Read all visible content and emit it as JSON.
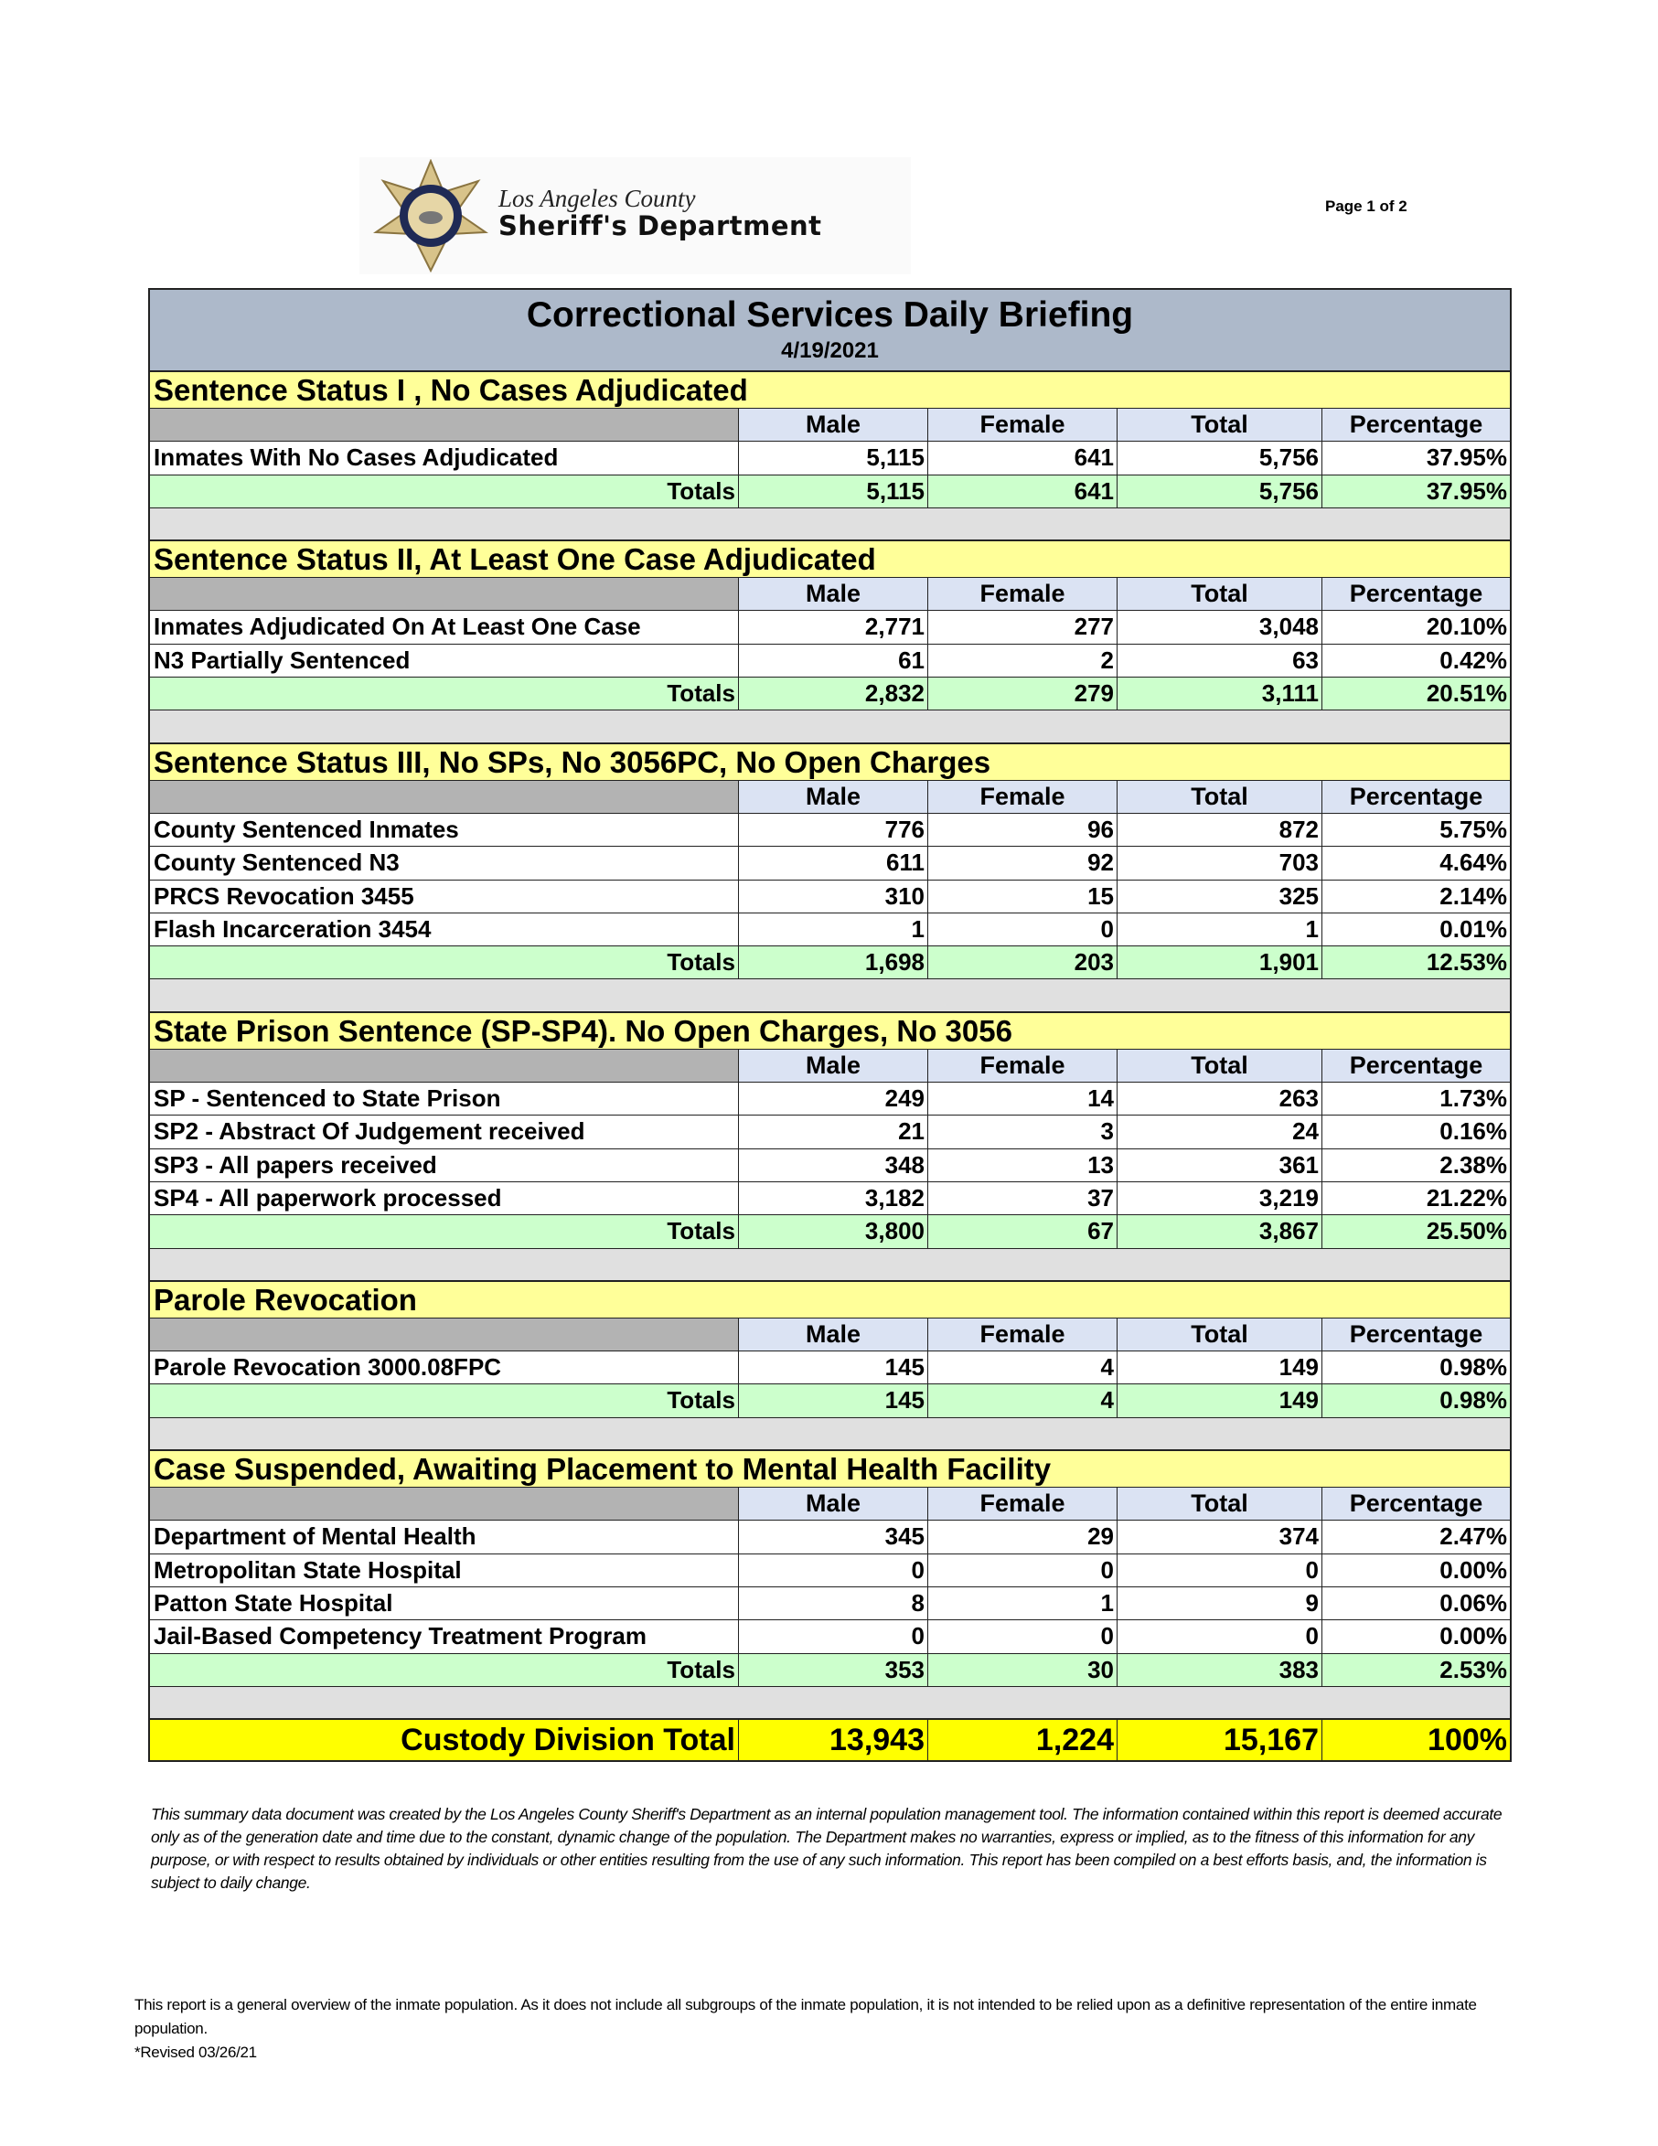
{
  "header": {
    "logo_line1": "Los Angeles County",
    "logo_line2": "Sheriff's Department",
    "page": "Page 1 of 2"
  },
  "report": {
    "title": "Correctional Services Daily Briefing",
    "date": "4/19/2021"
  },
  "columns": [
    "Male",
    "Female",
    "Total",
    "Percentage"
  ],
  "totals_label": "Totals",
  "colors": {
    "title_bg": "#adb9ca",
    "section_bg": "#ffff99",
    "totals_bg": "#ccffcc",
    "grand_bg": "#ffff00"
  },
  "sections": [
    {
      "title": "Sentence Status I , No Cases Adjudicated",
      "rows": [
        [
          "Inmates With No Cases Adjudicated",
          "5,115",
          "641",
          "5,756",
          "37.95%"
        ]
      ],
      "totals": [
        "5,115",
        "641",
        "5,756",
        "37.95%"
      ]
    },
    {
      "title": "Sentence Status II, At Least One Case Adjudicated",
      "rows": [
        [
          "Inmates Adjudicated On At Least One Case",
          "2,771",
          "277",
          "3,048",
          "20.10%"
        ],
        [
          "N3 Partially Sentenced",
          "61",
          "2",
          "63",
          "0.42%"
        ]
      ],
      "totals": [
        "2,832",
        "279",
        "3,111",
        "20.51%"
      ]
    },
    {
      "title": "Sentence Status III, No SPs, No 3056PC, No Open Charges",
      "rows": [
        [
          "County Sentenced Inmates",
          "776",
          "96",
          "872",
          "5.75%"
        ],
        [
          "County Sentenced N3",
          "611",
          "92",
          "703",
          "4.64%"
        ],
        [
          "PRCS Revocation 3455",
          "310",
          "15",
          "325",
          "2.14%"
        ],
        [
          "Flash Incarceration 3454",
          "1",
          "0",
          "1",
          "0.01%"
        ]
      ],
      "totals": [
        "1,698",
        "203",
        "1,901",
        "12.53%"
      ]
    },
    {
      "title": "State Prison Sentence (SP-SP4). No Open Charges, No 3056",
      "rows": [
        [
          "SP - Sentenced to State Prison",
          "249",
          "14",
          "263",
          "1.73%"
        ],
        [
          "SP2 - Abstract Of Judgement received",
          "21",
          "3",
          "24",
          "0.16%"
        ],
        [
          "SP3 - All papers received",
          "348",
          "13",
          "361",
          "2.38%"
        ],
        [
          "SP4 - All paperwork processed",
          "3,182",
          "37",
          "3,219",
          "21.22%"
        ]
      ],
      "totals": [
        "3,800",
        "67",
        "3,867",
        "25.50%"
      ]
    },
    {
      "title": "Parole Revocation",
      "rows": [
        [
          "Parole Revocation 3000.08FPC",
          "145",
          "4",
          "149",
          "0.98%"
        ]
      ],
      "totals": [
        "145",
        "4",
        "149",
        "0.98%"
      ]
    },
    {
      "title": "Case Suspended, Awaiting Placement to Mental Health Facility",
      "rows": [
        [
          "Department of Mental Health",
          "345",
          "29",
          "374",
          "2.47%"
        ],
        [
          "Metropolitan State Hospital",
          "0",
          "0",
          "0",
          "0.00%"
        ],
        [
          "Patton State Hospital",
          "8",
          "1",
          "9",
          "0.06%"
        ],
        [
          "Jail-Based Competency Treatment Program",
          "0",
          "0",
          "0",
          "0.00%"
        ]
      ],
      "totals": [
        "353",
        "30",
        "383",
        "2.53%"
      ]
    }
  ],
  "grand_total": {
    "label": "Custody Division Total",
    "values": [
      "13,943",
      "1,224",
      "15,167",
      "100%"
    ]
  },
  "disclaimer": "This summary data document was created by the Los Angeles County Sheriff's Department as an internal population management tool.  The information contained within this report is deemed accurate only as of the generation date and time due to the constant, dynamic change of the population.  The Department makes no warranties, express or implied, as to the fitness of this information for any purpose, or with respect to results obtained by individuals or other entities resulting from the use of any such information.  This report has been compiled on a best efforts basis, and, the information is subject to daily change.",
  "footnote": {
    "text": "This report is a general overview of the inmate population.  As it does not include all subgroups of the inmate population, it is not intended to be relied upon as a definitive representation of the entire inmate population.",
    "revised": "*Revised 03/26/21"
  }
}
